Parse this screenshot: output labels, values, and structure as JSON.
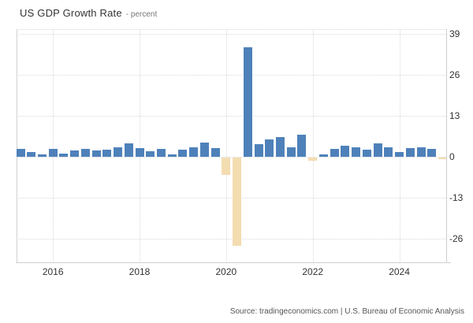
{
  "header": {
    "title": "US GDP Growth Rate",
    "subtitle": "- percent"
  },
  "footer": {
    "source_text": "Source: tradingeconomics.com | U.S. Bureau of Economic Analysis"
  },
  "colors": {
    "positive_bar": "#4e81ba",
    "negative_bar": "#f3dcb0",
    "gridline": "#d9d9d9",
    "axis_line": "#d0d0d0",
    "title_text": "#333333",
    "subtitle_text": "#777777",
    "tick_text": "#333333",
    "footer_text": "#555555",
    "background": "#ffffff"
  },
  "chart_data": {
    "type": "bar",
    "title": "US GDP Growth Rate",
    "ylabel": "percent",
    "legend_position": "none",
    "grid": "dotted",
    "ylim": [
      -33.5,
      40.5
    ],
    "y_ticks": [
      39,
      26,
      13,
      0,
      -13,
      -26
    ],
    "x_tick_labels": [
      "2016",
      "2018",
      "2020",
      "2022",
      "2024"
    ],
    "x": [
      "2015 Q2",
      "2015 Q3",
      "2015 Q4",
      "2016 Q1",
      "2016 Q2",
      "2016 Q3",
      "2016 Q4",
      "2017 Q1",
      "2017 Q2",
      "2017 Q3",
      "2017 Q4",
      "2018 Q1",
      "2018 Q2",
      "2018 Q3",
      "2018 Q4",
      "2019 Q1",
      "2019 Q2",
      "2019 Q3",
      "2019 Q4",
      "2020 Q1",
      "2020 Q2",
      "2020 Q3",
      "2020 Q4",
      "2021 Q1",
      "2021 Q2",
      "2021 Q3",
      "2021 Q4",
      "2022 Q1",
      "2022 Q2",
      "2022 Q3",
      "2022 Q4",
      "2023 Q1",
      "2023 Q2",
      "2023 Q3",
      "2023 Q4",
      "2024 Q1",
      "2024 Q2",
      "2024 Q3",
      "2024 Q4",
      "2025 Q1"
    ],
    "values": [
      2.5,
      1.5,
      0.8,
      2.4,
      1.0,
      2.1,
      2.6,
      2.0,
      2.3,
      3.0,
      4.3,
      2.8,
      1.8,
      2.5,
      0.7,
      2.3,
      3.0,
      4.6,
      2.7,
      -5.5,
      -28.1,
      34.8,
      4.0,
      5.5,
      6.2,
      3.1,
      7.0,
      -1.0,
      0.7,
      2.5,
      3.5,
      2.9,
      2.3,
      4.3,
      2.9,
      1.4,
      2.7,
      3.1,
      2.5,
      -0.5
    ]
  }
}
